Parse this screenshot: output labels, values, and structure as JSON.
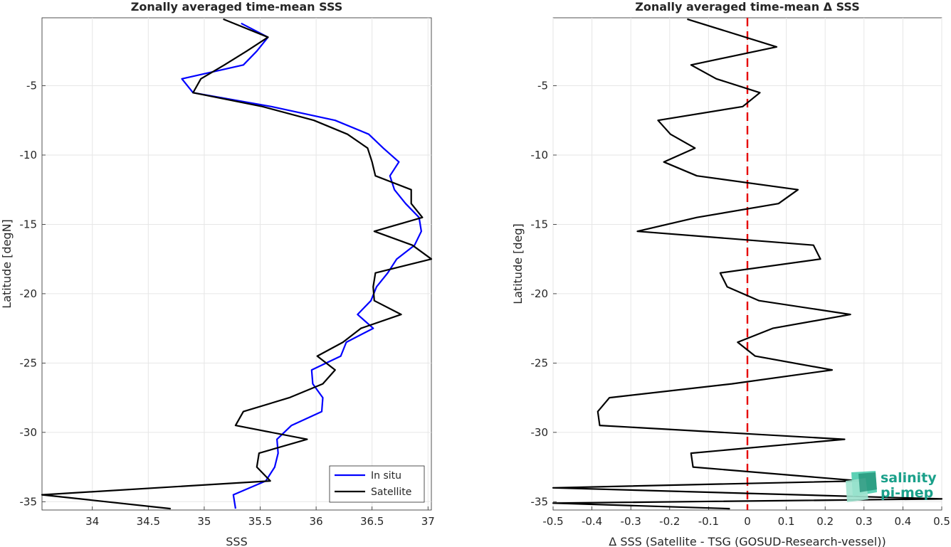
{
  "chart_data": [
    {
      "type": "line",
      "title": "Zonally averaged time-mean SSS",
      "xlabel": "SSS",
      "ylabel": "Latitude [degN]",
      "xlim": [
        33.55,
        37.03
      ],
      "ylim": [
        -35.6,
        -0.1
      ],
      "xticks": [
        "34",
        "34.5",
        "35",
        "35.5",
        "36",
        "36.5",
        "37"
      ],
      "yticks": [
        "-5",
        "-10",
        "-15",
        "-20",
        "-25",
        "-30",
        "-35"
      ],
      "grid": true,
      "legend": {
        "placement": "bottom-right",
        "entries": [
          "In situ",
          "Satellite"
        ]
      },
      "colors": {
        "in_situ": "#0000ff",
        "satellite": "#000000"
      },
      "series": [
        {
          "name": "In situ",
          "points": [
            [
              35.33,
              -0.5
            ],
            [
              35.57,
              -1.5
            ],
            [
              35.47,
              -2.5
            ],
            [
              35.35,
              -3.5
            ],
            [
              34.8,
              -4.5
            ],
            [
              34.9,
              -5.5
            ],
            [
              35.6,
              -6.5
            ],
            [
              36.17,
              -7.5
            ],
            [
              36.47,
              -8.5
            ],
            [
              36.6,
              -9.5
            ],
            [
              36.74,
              -10.5
            ],
            [
              36.66,
              -11.5
            ],
            [
              36.7,
              -12.5
            ],
            [
              36.8,
              -13.5
            ],
            [
              36.92,
              -14.5
            ],
            [
              36.94,
              -15.5
            ],
            [
              36.88,
              -16.5
            ],
            [
              36.72,
              -17.5
            ],
            [
              36.64,
              -18.5
            ],
            [
              36.54,
              -19.5
            ],
            [
              36.49,
              -20.5
            ],
            [
              36.37,
              -21.5
            ],
            [
              36.51,
              -22.5
            ],
            [
              36.27,
              -23.5
            ],
            [
              36.22,
              -24.5
            ],
            [
              35.96,
              -25.5
            ],
            [
              35.97,
              -26.5
            ],
            [
              36.06,
              -27.5
            ],
            [
              36.05,
              -28.5
            ],
            [
              35.78,
              -29.5
            ],
            [
              35.65,
              -30.5
            ],
            [
              35.66,
              -31.5
            ],
            [
              35.63,
              -32.5
            ],
            [
              35.55,
              -33.5
            ],
            [
              35.26,
              -34.5
            ],
            [
              35.28,
              -35.5
            ]
          ]
        },
        {
          "name": "Satellite",
          "points": [
            [
              35.17,
              -0.2
            ],
            [
              35.57,
              -1.5
            ],
            [
              35.38,
              -2.5
            ],
            [
              35.18,
              -3.5
            ],
            [
              34.97,
              -4.5
            ],
            [
              34.9,
              -5.5
            ],
            [
              35.52,
              -6.5
            ],
            [
              35.98,
              -7.5
            ],
            [
              36.28,
              -8.5
            ],
            [
              36.46,
              -9.5
            ],
            [
              36.5,
              -10.5
            ],
            [
              36.53,
              -11.5
            ],
            [
              36.85,
              -12.5
            ],
            [
              36.85,
              -13.5
            ],
            [
              36.95,
              -14.5
            ],
            [
              36.52,
              -15.5
            ],
            [
              36.86,
              -16.5
            ],
            [
              37.03,
              -17.5
            ],
            [
              36.53,
              -18.5
            ],
            [
              36.51,
              -19.5
            ],
            [
              36.52,
              -20.5
            ],
            [
              36.76,
              -21.5
            ],
            [
              36.4,
              -22.5
            ],
            [
              36.24,
              -23.5
            ],
            [
              36.01,
              -24.5
            ],
            [
              36.17,
              -25.5
            ],
            [
              36.06,
              -26.5
            ],
            [
              35.76,
              -27.5
            ],
            [
              35.35,
              -28.5
            ],
            [
              35.28,
              -29.5
            ],
            [
              35.92,
              -30.5
            ],
            [
              35.49,
              -31.5
            ],
            [
              35.47,
              -32.5
            ],
            [
              35.59,
              -33.5
            ],
            [
              33.55,
              -34.5
            ],
            [
              34.7,
              -35.5
            ]
          ]
        }
      ]
    },
    {
      "type": "line",
      "title": "Zonally averaged time-mean Δ SSS",
      "xlabel": "Δ SSS (Satellite - TSG (GOSUD-Research-vessel))",
      "ylabel": "Latitude [deg]",
      "xlim": [
        -0.5,
        0.5
      ],
      "ylim": [
        -35.6,
        -0.1
      ],
      "xticks": [
        "-0.5",
        "-0.4",
        "-0.3",
        "-0.2",
        "-0.1",
        "0",
        "0.1",
        "0.2",
        "0.3",
        "0.4",
        "0.5"
      ],
      "yticks": [
        "-5",
        "-10",
        "-15",
        "-20",
        "-25",
        "-30",
        "-35"
      ],
      "grid": true,
      "reference_line": {
        "x": 0,
        "color": "#e60000",
        "style": "dashed"
      },
      "colors": {
        "delta": "#000000"
      },
      "series": [
        {
          "points": [
            [
              -0.155,
              -0.2
            ],
            [
              0.075,
              -2.2
            ],
            [
              -0.145,
              -3.5
            ],
            [
              -0.08,
              -4.5
            ],
            [
              0.032,
              -5.5
            ],
            [
              -0.012,
              -6.5
            ],
            [
              -0.23,
              -7.5
            ],
            [
              -0.198,
              -8.5
            ],
            [
              -0.135,
              -9.5
            ],
            [
              -0.215,
              -10.5
            ],
            [
              -0.13,
              -11.5
            ],
            [
              0.13,
              -12.5
            ],
            [
              0.08,
              -13.5
            ],
            [
              -0.13,
              -14.5
            ],
            [
              -0.283,
              -15.5
            ],
            [
              0.17,
              -16.5
            ],
            [
              0.188,
              -17.5
            ],
            [
              -0.07,
              -18.5
            ],
            [
              -0.052,
              -19.5
            ],
            [
              0.03,
              -20.5
            ],
            [
              0.265,
              -21.5
            ],
            [
              0.065,
              -22.5
            ],
            [
              -0.025,
              -23.5
            ],
            [
              0.02,
              -24.5
            ],
            [
              0.218,
              -25.5
            ],
            [
              -0.04,
              -26.5
            ],
            [
              -0.355,
              -27.5
            ],
            [
              -0.385,
              -28.5
            ],
            [
              -0.38,
              -29.5
            ],
            [
              0.25,
              -30.5
            ],
            [
              -0.145,
              -31.5
            ],
            [
              -0.14,
              -32.5
            ],
            [
              0.29,
              -33.5
            ],
            [
              -0.5,
              -34.0
            ],
            [
              0.5,
              -34.8
            ],
            [
              -0.5,
              -35.1
            ],
            [
              -0.045,
              -35.5
            ]
          ]
        }
      ]
    }
  ],
  "logo": {
    "line1": "salinity",
    "line2": "pi-mep"
  }
}
